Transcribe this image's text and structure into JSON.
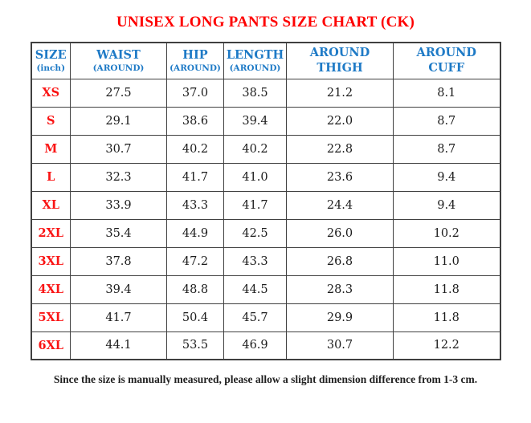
{
  "title": "UNISEX LONG PANTS SIZE CHART (CK)",
  "footer_note": "Since the size is manually measured, please allow a slight dimension difference from 1-3 cm.",
  "colors": {
    "title_red": "#fe0000",
    "header_blue": "#1e7ac6",
    "size_red": "#fa1414",
    "border": "#404040",
    "text": "#1b1b1b"
  },
  "table": {
    "columns": [
      {
        "key": "size",
        "line1": "SIZE",
        "line2": "(inch)",
        "line2_small": true
      },
      {
        "key": "waist",
        "line1": "WAIST",
        "line2": "(AROUND)",
        "line2_small": true
      },
      {
        "key": "hip",
        "line1": "HIP",
        "line2": "(AROUND)",
        "line2_small": true
      },
      {
        "key": "length",
        "line1": "LENGTH",
        "line2": "(AROUND)",
        "line2_small": true
      },
      {
        "key": "around-thigh",
        "line1": "AROUND",
        "line2": "THIGH",
        "line2_small": false
      },
      {
        "key": "around-cuff",
        "line1": "AROUND",
        "line2": "CUFF",
        "line2_small": false
      }
    ],
    "rows": [
      {
        "size": "XS",
        "values": [
          "27.5",
          "37.0",
          "38.5",
          "21.2",
          "8.1"
        ]
      },
      {
        "size": "S",
        "values": [
          "29.1",
          "38.6",
          "39.4",
          "22.0",
          "8.7"
        ]
      },
      {
        "size": "M",
        "values": [
          "30.7",
          "40.2",
          "40.2",
          "22.8",
          "8.7"
        ]
      },
      {
        "size": "L",
        "values": [
          "32.3",
          "41.7",
          "41.0",
          "23.6",
          "9.4"
        ]
      },
      {
        "size": "XL",
        "values": [
          "33.9",
          "43.3",
          "41.7",
          "24.4",
          "9.4"
        ]
      },
      {
        "size": "2XL",
        "values": [
          "35.4",
          "44.9",
          "42.5",
          "26.0",
          "10.2"
        ]
      },
      {
        "size": "3XL",
        "values": [
          "37.8",
          "47.2",
          "43.3",
          "26.8",
          "11.0"
        ]
      },
      {
        "size": "4XL",
        "values": [
          "39.4",
          "48.8",
          "44.5",
          "28.3",
          "11.8"
        ]
      },
      {
        "size": "5XL",
        "values": [
          "41.7",
          "50.4",
          "45.7",
          "29.9",
          "11.8"
        ]
      },
      {
        "size": "6XL",
        "values": [
          "44.1",
          "53.5",
          "46.9",
          "30.7",
          "12.2"
        ]
      }
    ]
  }
}
